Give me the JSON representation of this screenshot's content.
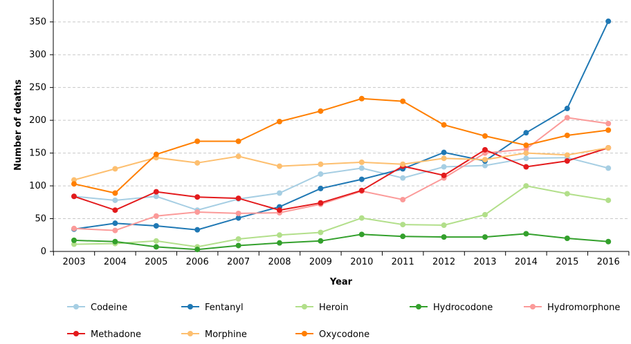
{
  "chart_data": {
    "type": "line",
    "title": "",
    "xlabel": "Year",
    "ylabel": "Number of deaths",
    "ylim": [
      0,
      375
    ],
    "yticks": [
      0,
      50,
      100,
      150,
      200,
      250,
      300,
      350
    ],
    "grid": "horizontal-dashed",
    "legend_position": "bottom",
    "x": [
      "2003",
      "2004",
      "2005",
      "2006",
      "2007",
      "2008",
      "2009",
      "2010",
      "2011",
      "2012",
      "2013",
      "2014",
      "2015",
      "2016"
    ],
    "series": [
      {
        "name": "Codeine",
        "color": "#a6cee3",
        "values": [
          84,
          78,
          84,
          63,
          80,
          89,
          118,
          127,
          112,
          129,
          131,
          142,
          143,
          127
        ]
      },
      {
        "name": "Fentanyl",
        "color": "#1f78b4",
        "values": [
          34,
          43,
          39,
          33,
          51,
          68,
          96,
          110,
          126,
          151,
          138,
          181,
          218,
          351
        ]
      },
      {
        "name": "Heroin",
        "color": "#b2df8a",
        "values": [
          11,
          12,
          16,
          7,
          19,
          25,
          29,
          51,
          41,
          40,
          56,
          100,
          88,
          78
        ]
      },
      {
        "name": "Hydrocodone",
        "color": "#33a02c",
        "values": [
          17,
          15,
          7,
          3,
          9,
          13,
          16,
          26,
          23,
          22,
          22,
          27,
          20,
          15
        ]
      },
      {
        "name": "Hydromorphone",
        "color": "#fb9a99",
        "values": [
          35,
          32,
          54,
          60,
          58,
          59,
          72,
          92,
          79,
          112,
          150,
          156,
          204,
          195
        ]
      },
      {
        "name": "Methadone",
        "color": "#e31a1c",
        "values": [
          84,
          63,
          91,
          83,
          81,
          63,
          74,
          93,
          130,
          116,
          155,
          129,
          138,
          158
        ]
      },
      {
        "name": "Morphine",
        "color": "#fdbf6f",
        "values": [
          109,
          126,
          143,
          135,
          145,
          130,
          133,
          136,
          133,
          142,
          140,
          150,
          147,
          158
        ]
      },
      {
        "name": "Oxycodone",
        "color": "#ff7f00",
        "values": [
          103,
          89,
          148,
          168,
          168,
          198,
          214,
          233,
          229,
          193,
          176,
          162,
          177,
          185
        ]
      }
    ]
  }
}
